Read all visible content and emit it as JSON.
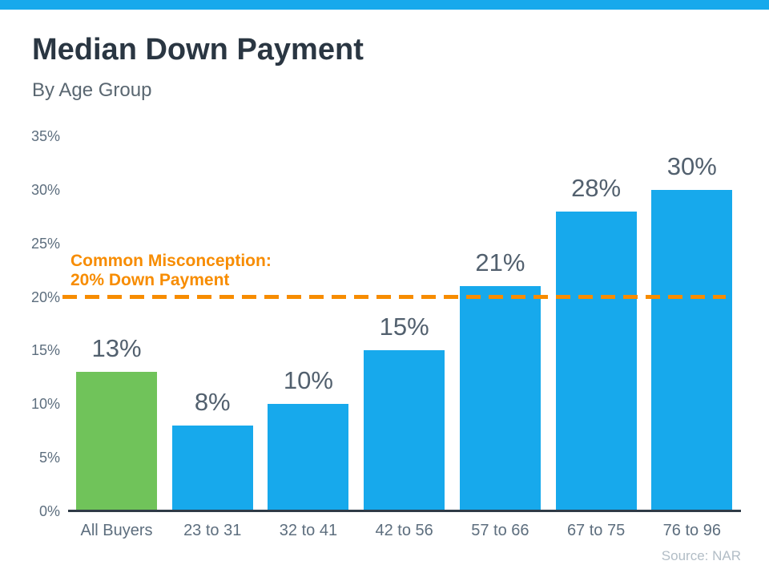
{
  "page": {
    "title": "Median Down Payment",
    "subtitle": "By Age Group",
    "source": "Source: NAR",
    "accent_color": "#17a9ec"
  },
  "annotation": {
    "line1": "Common Misconception:",
    "line2": "20% Down Payment",
    "color": "#f78c00"
  },
  "chart_data": {
    "type": "bar",
    "title": "Median Down Payment",
    "subtitle": "By Age Group",
    "categories": [
      "All Buyers",
      "23 to 31",
      "32 to 41",
      "42 to 56",
      "57 to 66",
      "67 to 75",
      "76 to 96"
    ],
    "values": [
      13,
      8,
      10,
      15,
      21,
      28,
      30
    ],
    "value_labels": [
      "13%",
      "8%",
      "10%",
      "15%",
      "21%",
      "28%",
      "30%"
    ],
    "bar_colors": [
      "#70c35a",
      "#17a9ec",
      "#17a9ec",
      "#17a9ec",
      "#17a9ec",
      "#17a9ec",
      "#17a9ec"
    ],
    "highlight_index": 0,
    "ylabel": "",
    "xlabel": "",
    "ylim": [
      0,
      35
    ],
    "ytick_step": 5,
    "ytick_labels": [
      "0%",
      "5%",
      "10%",
      "15%",
      "20%",
      "25%",
      "30%",
      "35%"
    ],
    "grid": false,
    "legend": false,
    "reference_line": {
      "value": 20,
      "style": "dashed",
      "color": "#f78c00",
      "label": "Common Misconception: 20% Down Payment"
    },
    "source": "Source: NAR"
  }
}
